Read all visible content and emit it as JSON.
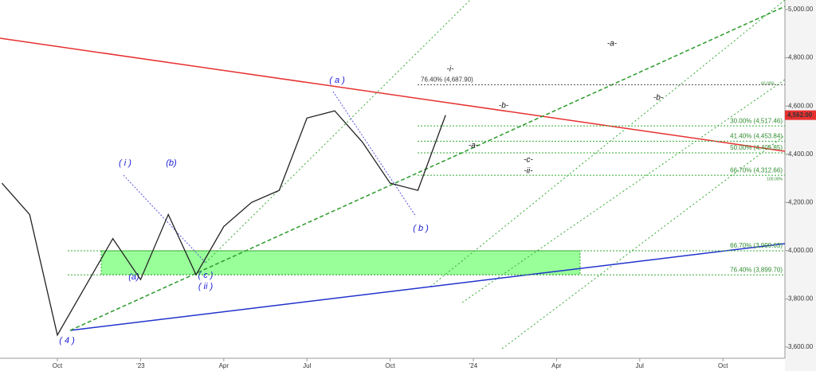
{
  "chart_data": {
    "type": "line",
    "x": [
      "2022-08",
      "2022-09",
      "2022-10",
      "2022-11",
      "2022-12",
      "2023-01",
      "2023-02",
      "2023-03",
      "2023-04",
      "2023-05",
      "2023-06",
      "2023-07",
      "2023-08",
      "2023-09",
      "2023-10",
      "2023-11",
      "2023-12"
    ],
    "series": [
      {
        "color": "#222222",
        "values": [
          4280,
          4150,
          3650,
          3850,
          4050,
          3880,
          4150,
          3900,
          4100,
          4200,
          4250,
          4550,
          4580,
          4450,
          4280,
          4250,
          4562
        ]
      }
    ],
    "last_price": {
      "value": 4562,
      "label": "4,562.00"
    },
    "ylim": [
      3600,
      5000
    ],
    "yticks": [
      {
        "value": 3600,
        "label": "3,600.00"
      },
      {
        "value": 3800,
        "label": "3,800.00"
      },
      {
        "value": 4000,
        "label": "4,000.00"
      },
      {
        "value": 4200,
        "label": "4,200.00"
      },
      {
        "value": 4400,
        "label": "4,400.00"
      },
      {
        "value": 4600,
        "label": "4,600.00"
      },
      {
        "value": 4800,
        "label": "4,800.00"
      },
      {
        "value": 5000,
        "label": "5,000.00"
      }
    ],
    "xticks": [
      {
        "value": "2022-10",
        "label": "Oct"
      },
      {
        "value": "2023-01",
        "label": "'23"
      },
      {
        "value": "2023-04",
        "label": "Apr"
      },
      {
        "value": "2023-07",
        "label": "Jul"
      },
      {
        "value": "2023-10",
        "label": "Oct"
      },
      {
        "value": "2024-01",
        "label": "'24"
      },
      {
        "value": "2024-04",
        "label": "Apr"
      },
      {
        "value": "2024-07",
        "label": "Jul"
      },
      {
        "value": "2024-10",
        "label": "Oct"
      }
    ],
    "fib_levels": [
      {
        "value": 4687.9,
        "label": "76.40% (4,687.90)"
      },
      {
        "value": 4517.46,
        "label": "30.00% (4,517.46)"
      },
      {
        "value": 4453.84,
        "label": "41.40% (4,453.84)"
      },
      {
        "value": 4405.85,
        "label": "50.00% (4,405.85)"
      },
      {
        "value": 4312.66,
        "label": "66.70% (4,312.66)"
      },
      {
        "value": 3999.63,
        "label": "66.70% (3,999.63)"
      },
      {
        "value": 3899.7,
        "label": "76.40% (3,899.70)"
      }
    ],
    "minor_labels": [
      "60.00%",
      "100.00%"
    ],
    "wave_labels": [
      "( i )",
      "(b)",
      "(a)",
      "( c )",
      "( ii )",
      "( 4 )",
      "( a )",
      "( b )",
      "-i-",
      "-a-",
      "-b-",
      "-b-",
      "-a-",
      "-c-",
      "-ii-"
    ]
  }
}
